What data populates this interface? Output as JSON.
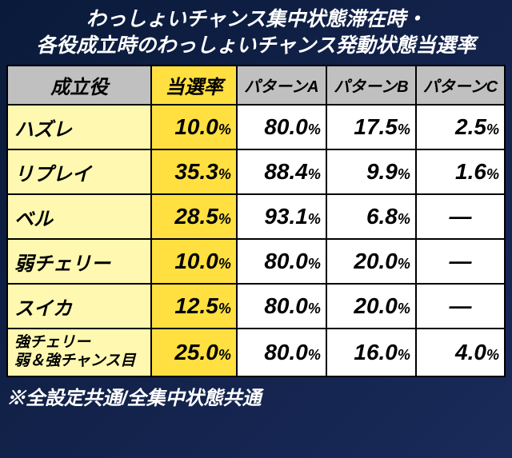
{
  "title_line1": "わっしょいチャンス集中状態滞在時・",
  "title_line2": "各役成立時のわっしょいチャンス発動状態当選率",
  "headers": {
    "role": "成立役",
    "rate": "当選率",
    "patternA": "パターンA",
    "patternB": "パターンB",
    "patternC": "パターンC"
  },
  "rows": [
    {
      "role": "ハズレ",
      "rate": {
        "v": "10.0",
        "u": "%"
      },
      "a": {
        "v": "80.0",
        "u": "%"
      },
      "b": {
        "v": "17.5",
        "u": "%"
      },
      "c": {
        "v": "2.5",
        "u": "%"
      }
    },
    {
      "role": "リプレイ",
      "rate": {
        "v": "35.3",
        "u": "%"
      },
      "a": {
        "v": "88.4",
        "u": "%"
      },
      "b": {
        "v": "9.9",
        "u": "%"
      },
      "c": {
        "v": "1.6",
        "u": "%"
      }
    },
    {
      "role": "ベル",
      "rate": {
        "v": "28.5",
        "u": "%"
      },
      "a": {
        "v": "93.1",
        "u": "%"
      },
      "b": {
        "v": "6.8",
        "u": "%"
      },
      "c": {
        "v": "—",
        "u": ""
      }
    },
    {
      "role": "弱チェリー",
      "rate": {
        "v": "10.0",
        "u": "%"
      },
      "a": {
        "v": "80.0",
        "u": "%"
      },
      "b": {
        "v": "20.0",
        "u": "%"
      },
      "c": {
        "v": "—",
        "u": ""
      }
    },
    {
      "role": "スイカ",
      "rate": {
        "v": "12.5",
        "u": "%"
      },
      "a": {
        "v": "80.0",
        "u": "%"
      },
      "b": {
        "v": "20.0",
        "u": "%"
      },
      "c": {
        "v": "—",
        "u": ""
      }
    },
    {
      "role_line1": "強チェリー",
      "role_line2": "弱＆強チャンス目",
      "rate": {
        "v": "25.0",
        "u": "%"
      },
      "a": {
        "v": "80.0",
        "u": "%"
      },
      "b": {
        "v": "16.0",
        "u": "%"
      },
      "c": {
        "v": "4.0",
        "u": "%"
      }
    }
  ],
  "footer": "※全設定共通/全集中状態共通",
  "colors": {
    "bg_start": "#0a1a3a",
    "bg_end": "#1a2a5a",
    "header_gray": "#c0c0c0",
    "header_yellow": "#ffe040",
    "role_bg": "#fff8b0",
    "rate_bg": "#ffe040",
    "cell_bg": "#ffffff",
    "border": "#000000",
    "text_white": "#ffffff"
  }
}
